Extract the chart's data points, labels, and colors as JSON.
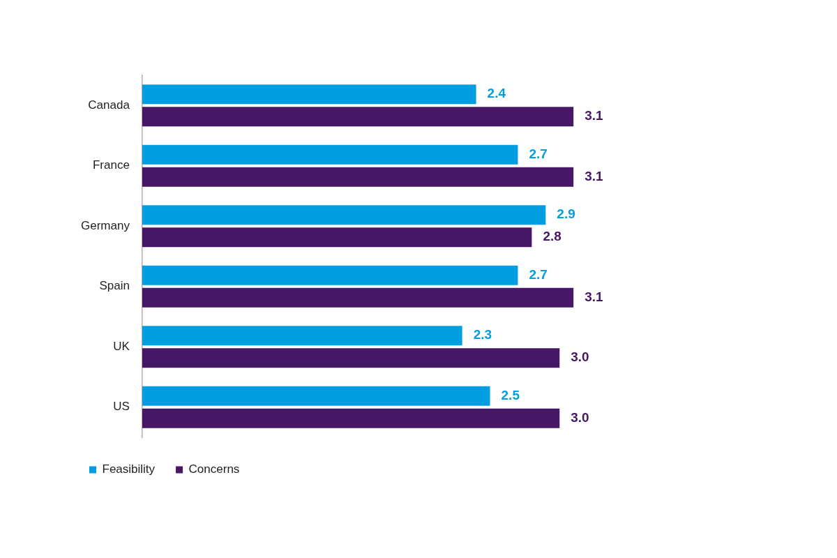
{
  "chart_data": {
    "type": "bar",
    "orientation": "horizontal",
    "categories": [
      "Canada",
      "France",
      "Germany",
      "Spain",
      "UK",
      "US"
    ],
    "series": [
      {
        "name": "Feasibility",
        "color": "#009ee0",
        "values": [
          2.4,
          2.7,
          2.9,
          2.7,
          2.3,
          2.5
        ],
        "value_labels": [
          "2.4",
          "2.7",
          "2.9",
          "2.7",
          "2.3",
          "2.5"
        ]
      },
      {
        "name": "Concerns",
        "color": "#461765",
        "values": [
          3.1,
          3.1,
          2.8,
          3.1,
          3.0,
          3.0
        ],
        "value_labels": [
          "3.1",
          "3.1",
          "2.8",
          "3.1",
          "3.0",
          "3.0"
        ]
      }
    ],
    "legend": "bottom left",
    "grid": false,
    "tick_labels": "y"
  }
}
